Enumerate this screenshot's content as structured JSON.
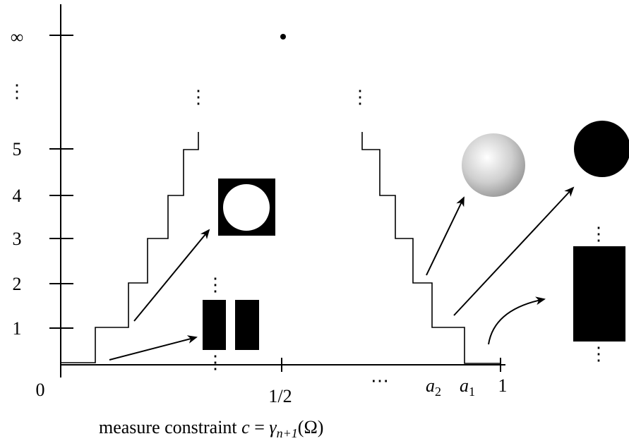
{
  "y_axis": {
    "labels": [
      "∞",
      "⋮",
      "5",
      "4",
      "3",
      "2",
      "1"
    ]
  },
  "x_axis": {
    "origin": "0",
    "ticks": [
      "1/2",
      "⋯",
      {
        "base": "a",
        "sub": "2"
      },
      {
        "base": "a",
        "sub": "1"
      },
      "1"
    ],
    "title": {
      "text": "measure constraint ",
      "var": "c",
      "eq": " = ",
      "func": "γ",
      "sub": "n+1",
      "arg": "(Ω)"
    }
  },
  "ellipses": [
    "⋮",
    "⋮",
    "⋮",
    "⋮",
    "⋮",
    "⋮"
  ]
}
